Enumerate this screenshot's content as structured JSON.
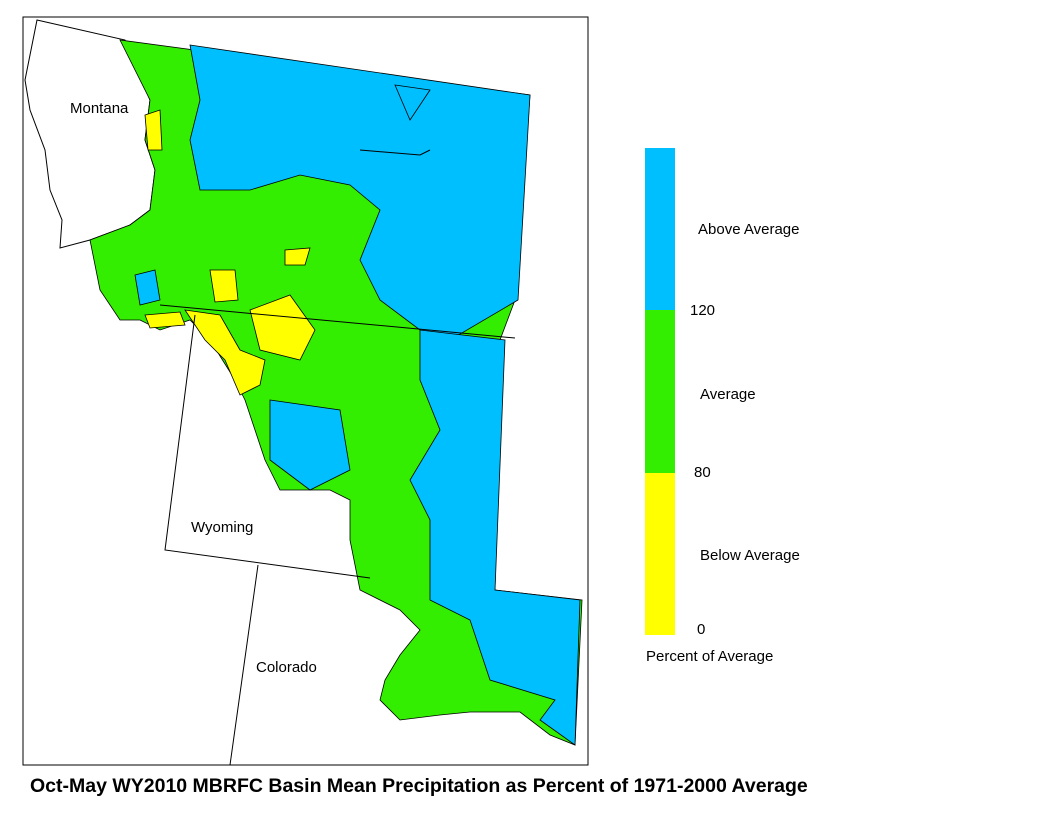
{
  "map": {
    "state_labels": [
      "Montana",
      "Wyoming",
      "Colorado"
    ],
    "legend": {
      "title": "Percent of Average",
      "bands": [
        {
          "label": "Above Average",
          "color": "#00bfff"
        },
        {
          "label": "Average",
          "color": "#33ee00"
        },
        {
          "label": "Below Average",
          "color": "#ffff00"
        }
      ],
      "ticks": [
        "120",
        "80",
        "0"
      ]
    },
    "title": "Oct-May WY2010 MBRFC Basin Mean Precipitation as Percent of 1971-2000 Average"
  }
}
